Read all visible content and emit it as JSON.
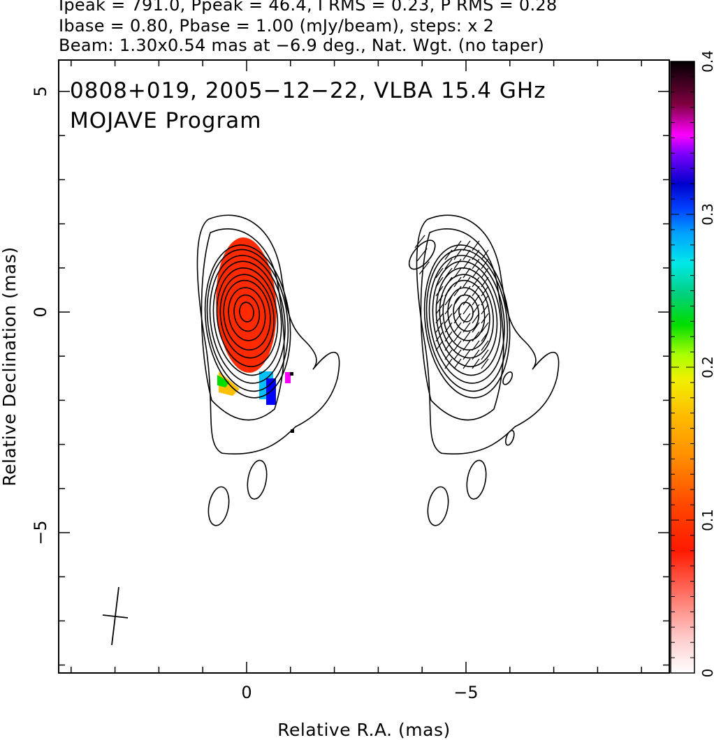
{
  "header": {
    "line1": "Ipeak = 791.0, Ppeak = 46.4, I RMS = 0.23, P RMS = 0.28",
    "line2": "Ibase = 0.80, Pbase = 1.00 (mJy/beam), steps: x 2",
    "line3": "Beam: 1.30x0.54 mas at −6.9 deg., Nat. Wgt. (no taper)"
  },
  "chart_data": {
    "type": "heatmap",
    "title": "0808+019, 2005−12−22, VLBA 15.4 GHz",
    "subtitle": "MOJAVE Program",
    "xlabel": "Relative R.A. (mas)",
    "ylabel": "Relative Declination (mas)",
    "xlim": [
      4.1,
      -9.8
    ],
    "ylim": [
      -8.1,
      5.8
    ],
    "x_ticks": [
      0,
      -5
    ],
    "x_tick_labels": [
      "0",
      "−5"
    ],
    "y_ticks": [
      5,
      0,
      -5
    ],
    "y_tick_labels": [
      "5",
      "0",
      "−5"
    ],
    "colorbar": {
      "range": [
        0,
        0.4
      ],
      "ticks": [
        0,
        0.1,
        0.2,
        0.3,
        0.4
      ],
      "tick_labels": [
        "0",
        "0.1",
        "0.2",
        "0.3",
        "0.4"
      ]
    },
    "stokes_I_contour_levels_mJy": [
      0.8,
      1.6,
      3.2,
      6.4,
      12.8,
      25.6,
      51.2,
      102.4,
      204.8,
      409.6
    ],
    "components": [
      {
        "name": "left panel core",
        "x": 0,
        "y": 0
      },
      {
        "name": "right panel core",
        "x": -5,
        "y": 0
      }
    ],
    "beam": {
      "major_mas": 1.3,
      "minor_mas": 0.54,
      "pa_deg": -6.9
    },
    "colors": {
      "fractional_pol_low": "#ff2a00",
      "fractional_pol_mid": "#00dd00",
      "fractional_pol_high": "#0000ff",
      "contours": "#000000"
    }
  }
}
